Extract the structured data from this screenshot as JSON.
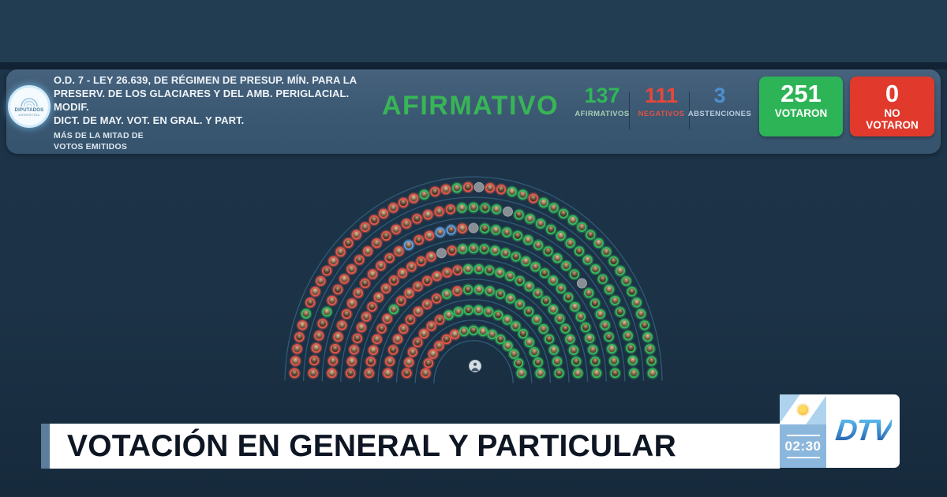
{
  "colors": {
    "afirmativo": "#35ba5d",
    "negativo": "#e4584a",
    "abstencion": "#5f9fe0",
    "sin_voto": "#878e95",
    "presidencia_fill": "#d6dce1",
    "arc_line": "#34627f",
    "result_green": "#38b556",
    "box_green": "#2db457",
    "box_red": "#e13a2d"
  },
  "header": {
    "logo": {
      "line1": "DIPUTADOS",
      "line2": "ARGENTINA"
    },
    "motion_lines": [
      "O.D. 7 - LEY 26.639, DE RÉGIMEN DE PRESUP. MÍN. PARA LA",
      "PRESERV. DE LOS GLACIARES Y DEL AMB. PERIGLACIAL. MODIF.",
      "DICT. DE MAY. VOT. EN GRAL. Y PART."
    ],
    "note_lines": [
      "MÁS DE LA MITAD DE",
      "VOTOS EMITIDOS"
    ],
    "result_label": "AFIRMATIVO",
    "counters": [
      {
        "value": "137",
        "label": "AFIRMATIVOS"
      },
      {
        "value": "111",
        "label": "NEGATIVOS"
      },
      {
        "value": "3",
        "label": "ABSTENCIONES"
      }
    ],
    "voted_box": {
      "value": "251",
      "label": "VOTARON"
    },
    "not_voted_box": {
      "value": "0",
      "label": "NO VOTARON"
    }
  },
  "banner": {
    "title": "VOTACIÓN EN GENERAL Y PARTICULAR"
  },
  "channel": {
    "timer": "02:30",
    "name": "DTV"
  },
  "chart_data": {
    "type": "parliament-hemicycle",
    "title": "Votación en la Cámara de Diputados de Argentina",
    "totals": {
      "afirmativos": 137,
      "negativos": 111,
      "abstenciones": 3,
      "votaron": 251,
      "no_votaron": 0,
      "bancas_sin_voto_grises": 5,
      "presidencia": 1,
      "total_bancas": 257
    },
    "seat_codes": {
      "A": "afirmativo",
      "N": "negativo",
      "B": "abstencion",
      "X": "sin_voto",
      "P": "presidencia"
    },
    "rows_inner_to_outer": [
      "NNNNNNAAAAAAAAA",
      "NNNNNNNAAAAAAAAAAAAA",
      "NNNNNNNNNANAAAAAAAAAAAAA",
      "NNNNNNANNNNNNNAAAAAAAAAAAAAAAA",
      "NNNNNNNNNNNNNNXNAAAAAAAAAAAAAAAAAAA",
      "NNNNNNNNNNNNNBNNBBNXAAAAAAAAAAXAAAAAAAA",
      "NNNNNANNNNNNNNNNNNNNAAAAXAAAAAAAAAAAAAAAAAA",
      "NNNNNANNNNNNNNNNNNNNANNANXNNAANAAAAAAAAAAAAAAAAAAA"
    ],
    "president_seat": "P",
    "layout": {
      "orientation": "semicircle-up",
      "rows": 8,
      "legend_visible": false
    }
  }
}
